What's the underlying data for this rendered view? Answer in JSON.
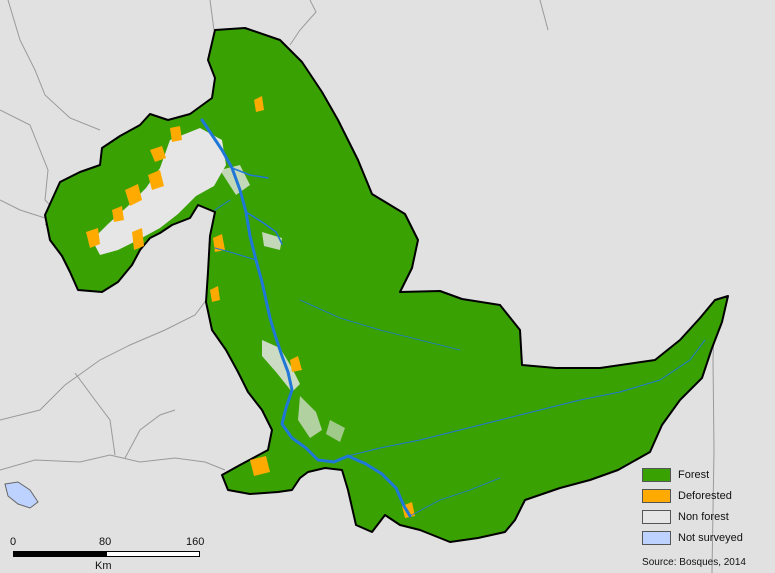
{
  "legend": {
    "items": [
      {
        "label": "Forest",
        "color": "#39a102"
      },
      {
        "label": "Deforested",
        "color": "#ffaa00"
      },
      {
        "label": "Non forest",
        "color": "#e6e6e6"
      },
      {
        "label": "Not surveyed",
        "color": "#bed2ff"
      }
    ]
  },
  "scale": {
    "ticks": [
      "0",
      "80",
      "160"
    ],
    "unit": "Km"
  },
  "source": "Source: Bosques, 2014",
  "colors": {
    "background": "#e1e1e1",
    "forest": "#39a102",
    "river": "#1f78d8",
    "boundary": "#9a9a9a",
    "outline": "#000000"
  }
}
